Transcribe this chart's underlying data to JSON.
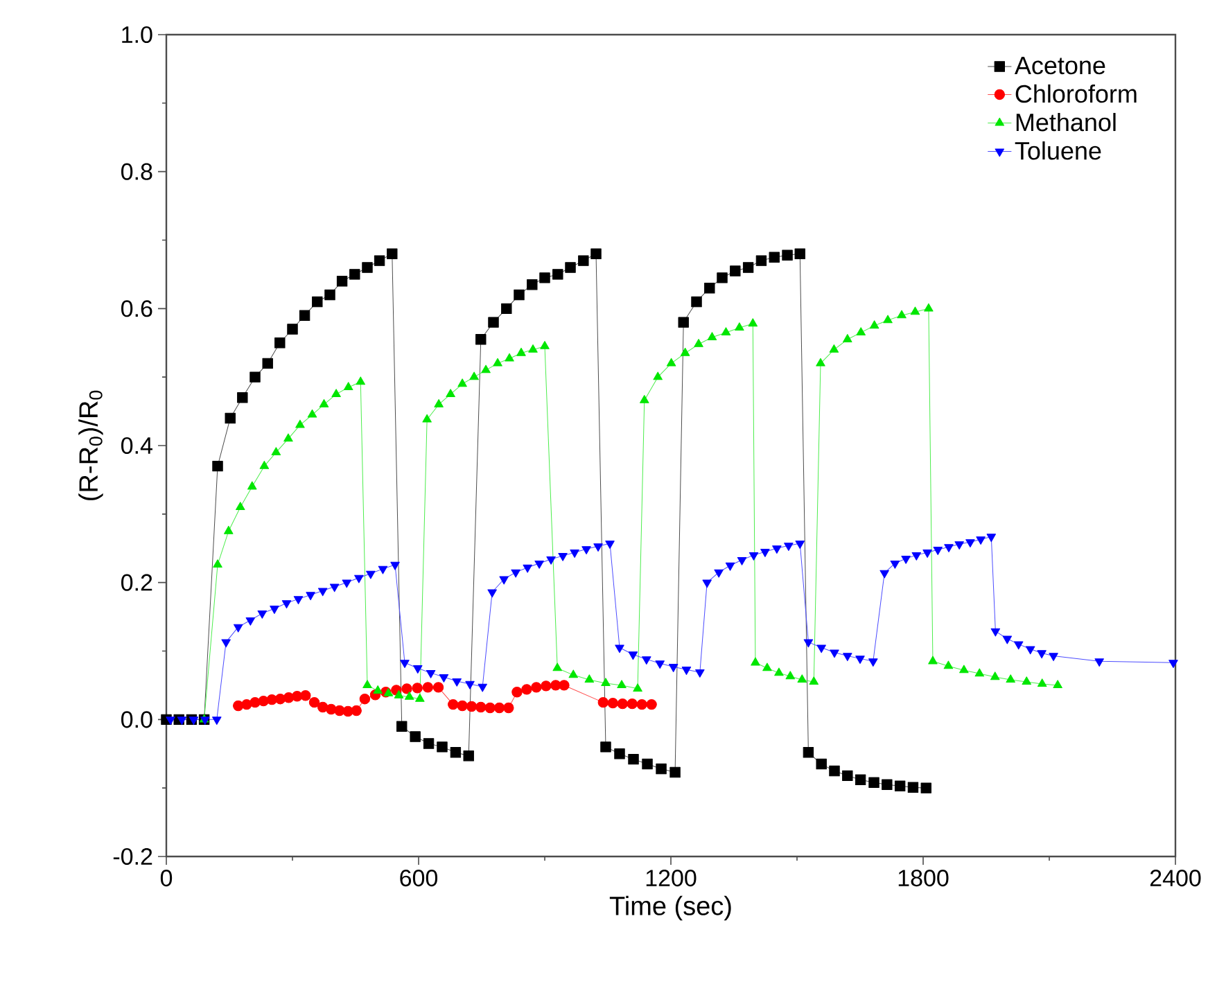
{
  "chart_data": {
    "type": "line",
    "xlabel": "Time (sec)",
    "ylabel": "(R-R$_{0}$)/R$_{0}$",
    "xlim": [
      0,
      2400
    ],
    "ylim": [
      -0.2,
      1.0
    ],
    "xticks": [
      0,
      600,
      1200,
      1800,
      2400
    ],
    "yticks": [
      {
        "value": -0.2,
        "label": "-0.2"
      },
      {
        "value": 0,
        "label": "0.0"
      },
      {
        "value": 0.2,
        "label": "0.2"
      },
      {
        "value": 0.4,
        "label": "0.4"
      },
      {
        "value": 0.6,
        "label": "0.6"
      },
      {
        "value": 0.8,
        "label": "0.8"
      },
      {
        "value": 1.0,
        "label": "1.0"
      }
    ],
    "legend": "top right",
    "grid": false,
    "series": [
      {
        "name": "Acetone",
        "color": "#000000",
        "marker": "square",
        "x": [
          0,
          30,
          60,
          90,
          122,
          152,
          181,
          211,
          241,
          270,
          300,
          329,
          359,
          389,
          418,
          448,
          478,
          507,
          537,
          560,
          592,
          624,
          656,
          688,
          719,
          748,
          778,
          809,
          839,
          870,
          900,
          931,
          961,
          992,
          1022,
          1045,
          1078,
          1111,
          1144,
          1177,
          1210,
          1230,
          1261,
          1292,
          1322,
          1353,
          1384,
          1415,
          1446,
          1477,
          1507,
          1527,
          1558,
          1589,
          1620,
          1651,
          1683,
          1714,
          1745,
          1776,
          1807
        ],
        "values": [
          0,
          0,
          0,
          0,
          0.37,
          0.44,
          0.47,
          0.5,
          0.52,
          0.55,
          0.57,
          0.59,
          0.61,
          0.62,
          0.64,
          0.65,
          0.66,
          0.67,
          0.68,
          -0.01,
          -0.025,
          -0.035,
          -0.04,
          -0.048,
          -0.053,
          0.555,
          0.58,
          0.6,
          0.62,
          0.635,
          0.645,
          0.65,
          0.66,
          0.67,
          0.68,
          -0.04,
          -0.05,
          -0.058,
          -0.065,
          -0.072,
          -0.077,
          0.58,
          0.61,
          0.63,
          0.645,
          0.655,
          0.66,
          0.67,
          0.675,
          0.678,
          0.68,
          -0.048,
          -0.065,
          -0.075,
          -0.082,
          -0.088,
          -0.092,
          -0.095,
          -0.097,
          -0.099,
          -0.1
        ]
      },
      {
        "name": "Chloroform",
        "color": "#ff0000",
        "marker": "circle",
        "x": [
          171,
          191,
          211,
          231,
          251,
          271,
          291,
          311,
          331,
          352,
          372,
          392,
          412,
          432,
          452,
          472,
          497,
          522,
          547,
          572,
          597,
          622,
          647,
          682,
          704,
          726,
          748,
          770,
          792,
          814,
          834,
          857,
          880,
          903,
          926,
          946,
          1039,
          1062,
          1085,
          1108,
          1131,
          1154
        ],
        "values": [
          0.02,
          0.022,
          0.025,
          0.027,
          0.029,
          0.03,
          0.032,
          0.034,
          0.035,
          0.025,
          0.018,
          0.015,
          0.013,
          0.012,
          0.013,
          0.03,
          0.036,
          0.04,
          0.043,
          0.045,
          0.046,
          0.047,
          0.047,
          0.022,
          0.02,
          0.019,
          0.018,
          0.017,
          0.017,
          0.017,
          0.04,
          0.044,
          0.047,
          0.049,
          0.05,
          0.05,
          0.025,
          0.024,
          0.023,
          0.023,
          0.022,
          0.022
        ]
      },
      {
        "name": "Methanol",
        "color": "#00e600",
        "marker": "triangle",
        "x": [
          90,
          122,
          148,
          176,
          204,
          233,
          261,
          290,
          318,
          347,
          375,
          404,
          433,
          462,
          478,
          503,
          528,
          553,
          578,
          603,
          620,
          648,
          676,
          704,
          732,
          760,
          788,
          816,
          844,
          872,
          900,
          930,
          968,
          1006,
          1045,
          1083,
          1121,
          1137,
          1169,
          1201,
          1234,
          1266,
          1298,
          1331,
          1363,
          1395,
          1401,
          1429,
          1457,
          1484,
          1512,
          1540,
          1556,
          1588,
          1620,
          1652,
          1684,
          1716,
          1749,
          1781,
          1813,
          1823,
          1860,
          1897,
          1934,
          1971,
          2008,
          2046,
          2083,
          2120
        ],
        "values": [
          0,
          0.226,
          0.275,
          0.31,
          0.34,
          0.37,
          0.39,
          0.41,
          0.43,
          0.445,
          0.46,
          0.475,
          0.485,
          0.493,
          0.05,
          0.042,
          0.038,
          0.035,
          0.033,
          0.03,
          0.438,
          0.46,
          0.475,
          0.49,
          0.5,
          0.51,
          0.52,
          0.527,
          0.535,
          0.54,
          0.545,
          0.075,
          0.065,
          0.058,
          0.053,
          0.05,
          0.045,
          0.466,
          0.5,
          0.52,
          0.535,
          0.548,
          0.558,
          0.565,
          0.572,
          0.578,
          0.083,
          0.075,
          0.068,
          0.063,
          0.058,
          0.055,
          0.52,
          0.54,
          0.555,
          0.565,
          0.575,
          0.583,
          0.59,
          0.595,
          0.6,
          0.085,
          0.078,
          0.072,
          0.067,
          0.062,
          0.058,
          0.055,
          0.052,
          0.05
        ]
      },
      {
        "name": "Toluene",
        "color": "#0000ff",
        "marker": "triangle-down",
        "x": [
          10,
          37,
          65,
          92,
          120,
          142,
          171,
          200,
          228,
          257,
          286,
          314,
          343,
          372,
          400,
          429,
          458,
          486,
          515,
          544,
          567,
          598,
          629,
          660,
          691,
          722,
          752,
          775,
          803,
          831,
          859,
          887,
          915,
          943,
          971,
          999,
          1027,
          1055,
          1078,
          1110,
          1142,
          1174,
          1206,
          1237,
          1269,
          1286,
          1314,
          1341,
          1369,
          1397,
          1424,
          1452,
          1480,
          1507,
          1527,
          1558,
          1589,
          1620,
          1650,
          1681,
          1708,
          1733,
          1759,
          1784,
          1810,
          1835,
          1861,
          1886,
          1912,
          1937,
          1962,
          1972,
          2000,
          2027,
          2055,
          2082,
          2110,
          2219,
          2395
        ],
        "values": [
          0,
          0,
          0,
          0,
          0,
          0.113,
          0.135,
          0.145,
          0.155,
          0.162,
          0.17,
          0.176,
          0.182,
          0.188,
          0.194,
          0.2,
          0.207,
          0.213,
          0.22,
          0.226,
          0.083,
          0.075,
          0.068,
          0.062,
          0.056,
          0.052,
          0.048,
          0.186,
          0.205,
          0.215,
          0.222,
          0.228,
          0.234,
          0.239,
          0.244,
          0.249,
          0.253,
          0.257,
          0.105,
          0.095,
          0.088,
          0.082,
          0.077,
          0.073,
          0.069,
          0.2,
          0.215,
          0.225,
          0.233,
          0.24,
          0.245,
          0.25,
          0.254,
          0.257,
          0.113,
          0.105,
          0.098,
          0.093,
          0.089,
          0.085,
          0.214,
          0.228,
          0.235,
          0.24,
          0.244,
          0.248,
          0.252,
          0.256,
          0.259,
          0.263,
          0.267,
          0.129,
          0.118,
          0.11,
          0.103,
          0.097,
          0.093,
          0.085,
          0.083
        ]
      }
    ]
  }
}
